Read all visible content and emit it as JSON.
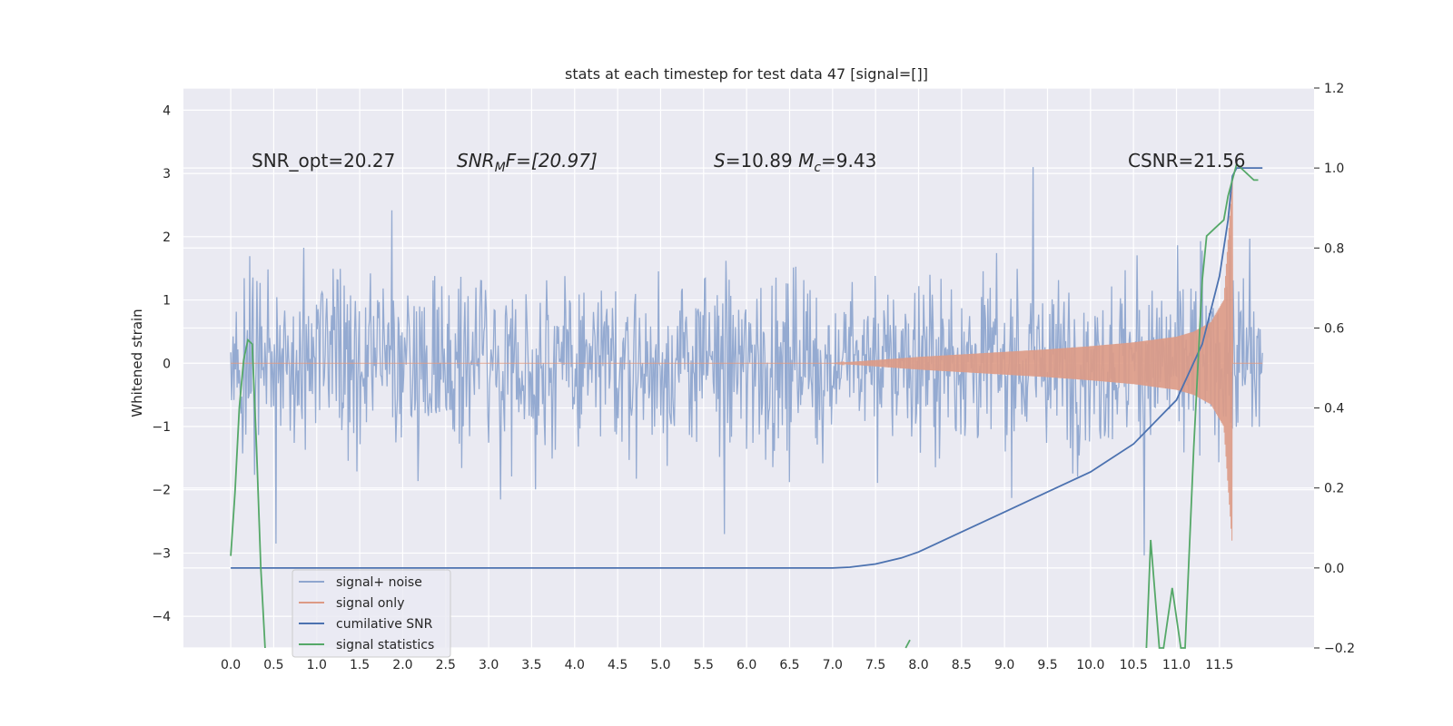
{
  "chart_data": {
    "type": "line",
    "title": "stats at each timestep for test data 47 [signal=[]]",
    "ylabel": "Whitened strain",
    "xlabel": "",
    "xlim": [
      -0.55,
      12.6
    ],
    "ylim": [
      -4.5,
      4.35
    ],
    "y2lim": [
      -0.2,
      1.2
    ],
    "grid": true,
    "legend_position": "lower-left",
    "x_ticks": [
      "0.0",
      "0.5",
      "1.0",
      "1.5",
      "2.0",
      "2.5",
      "3.0",
      "3.5",
      "4.0",
      "4.5",
      "5.0",
      "5.5",
      "6.0",
      "6.5",
      "7.0",
      "7.5",
      "8.0",
      "8.5",
      "9.0",
      "9.5",
      "10.0",
      "10.5",
      "11.0",
      "11.5"
    ],
    "y_ticks": [
      "4",
      "3",
      "2",
      "1",
      "0",
      "−1",
      "−2",
      "−3",
      "−4"
    ],
    "y2_ticks": [
      "1.2",
      "1.0",
      "0.8",
      "0.6",
      "0.4",
      "0.2",
      "0.0",
      "−0.2"
    ],
    "annotations": {
      "snr_opt": "SNR_opt=20.27",
      "snr_mf_main": "SNR",
      "snr_mf_sub": "M",
      "snr_mf_rest": "F=[20.97]",
      "s_label": "S",
      "s_value": "=10.89 ",
      "mc_label": "M",
      "mc_sub": "c",
      "mc_value": "=9.43",
      "csnr": "CSNR=21.56"
    },
    "series": [
      {
        "name": "signal+ noise",
        "color": "#8fa6cf",
        "axis": "left",
        "envelope_range": [
          -2.3,
          2.3
        ],
        "x_range": [
          0,
          12.0
        ]
      },
      {
        "name": "signal only",
        "color": "#dd9a85",
        "axis": "left",
        "envelope_x": [
          7.0,
          7.5,
          8.0,
          8.5,
          9.0,
          9.5,
          10.0,
          10.5,
          11.0,
          11.2,
          11.4,
          11.55,
          11.65
        ],
        "envelope_amp": [
          0.0,
          0.05,
          0.1,
          0.14,
          0.18,
          0.22,
          0.27,
          0.33,
          0.42,
          0.5,
          0.65,
          1.0,
          2.9
        ]
      },
      {
        "name": "cumilative SNR",
        "color": "#4c72b0",
        "axis": "right",
        "x": [
          0.0,
          7.0,
          7.2,
          7.5,
          7.8,
          8.0,
          8.5,
          9.0,
          9.5,
          10.0,
          10.5,
          11.0,
          11.3,
          11.5,
          11.6,
          11.65,
          11.7,
          12.0
        ],
        "y": [
          0.0,
          0.0,
          0.002,
          0.01,
          0.025,
          0.04,
          0.09,
          0.14,
          0.19,
          0.24,
          0.31,
          0.42,
          0.56,
          0.73,
          0.87,
          0.98,
          1.0,
          1.0
        ]
      },
      {
        "name": "signal statistics",
        "color": "#55a868",
        "axis": "right",
        "x": [
          0.0,
          0.05,
          0.1,
          0.15,
          0.2,
          0.25,
          0.3,
          0.35,
          0.4
        ],
        "y": [
          0.03,
          0.19,
          0.4,
          0.52,
          0.57,
          0.56,
          0.3,
          0.0,
          -0.2
        ],
        "x2": [
          7.85,
          7.9
        ],
        "y2": [
          -0.2,
          -0.18
        ],
        "x3": [
          10.65,
          10.7,
          10.8,
          10.85,
          10.95,
          11.05,
          11.1,
          11.2,
          11.3,
          11.35,
          11.45,
          11.55,
          11.6,
          11.7,
          11.8,
          11.9,
          11.95
        ],
        "y3": [
          -0.2,
          0.07,
          -0.2,
          -0.2,
          -0.05,
          -0.2,
          -0.2,
          0.3,
          0.72,
          0.83,
          0.85,
          0.87,
          0.93,
          1.01,
          0.99,
          0.97,
          0.97
        ]
      }
    ],
    "legend": [
      {
        "label": "signal+ noise",
        "color": "#8fa6cf"
      },
      {
        "label": "signal only",
        "color": "#dd9a85"
      },
      {
        "label": "cumilative SNR",
        "color": "#4c72b0"
      },
      {
        "label": "signal statistics",
        "color": "#55a868"
      }
    ],
    "colors": {
      "plot_bg": "#eaeaf2",
      "grid": "#ffffff",
      "text": "#262626"
    }
  }
}
